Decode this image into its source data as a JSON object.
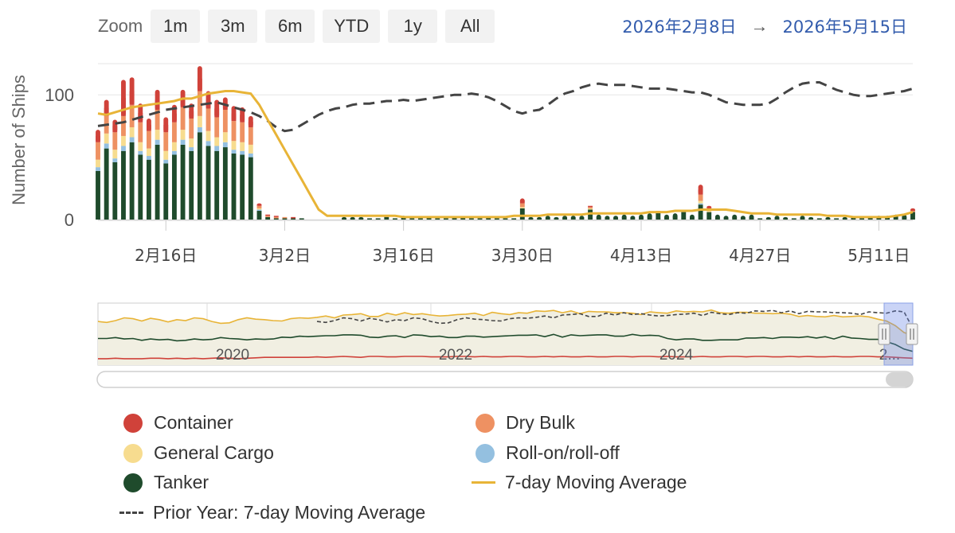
{
  "zoom": {
    "label": "Zoom",
    "buttons": [
      "1m",
      "3m",
      "6m",
      "YTD",
      "1y",
      "All"
    ]
  },
  "range": {
    "from": "2026年2月8日",
    "arrow": "→",
    "to": "2026年5月15日"
  },
  "colors": {
    "container": "#d0423a",
    "dry_bulk": "#ee9162",
    "general_cargo": "#f7dc8f",
    "roro": "#94c0e0",
    "tanker": "#1f4b2c",
    "moving_avg": "#e8b437",
    "prior_year": "#444444"
  },
  "chart_data": {
    "type": "bar",
    "ylabel": "Number of Ships",
    "yticks": [
      0,
      100
    ],
    "ylim": [
      0,
      125
    ],
    "xlim": [
      "2026-02-08",
      "2026-05-15"
    ],
    "xticks": [
      "2026-02-16",
      "2026-03-02",
      "2026-03-16",
      "2026-03-30",
      "2026-04-13",
      "2026-04-27",
      "2026-05-11"
    ],
    "xtick_labels": [
      "2月16日",
      "3月2日",
      "3月16日",
      "3月30日",
      "4月13日",
      "4月27日",
      "5月11日"
    ],
    "x": [
      "2026-02-08",
      "2026-02-09",
      "2026-02-10",
      "2026-02-11",
      "2026-02-12",
      "2026-02-13",
      "2026-02-14",
      "2026-02-15",
      "2026-02-16",
      "2026-02-17",
      "2026-02-18",
      "2026-02-19",
      "2026-02-20",
      "2026-02-21",
      "2026-02-22",
      "2026-02-23",
      "2026-02-24",
      "2026-02-25",
      "2026-02-26",
      "2026-02-27",
      "2026-02-28",
      "2026-03-01",
      "2026-03-02",
      "2026-03-03",
      "2026-03-04",
      "2026-03-05",
      "2026-03-06",
      "2026-03-07",
      "2026-03-08",
      "2026-03-09",
      "2026-03-10",
      "2026-03-11",
      "2026-03-12",
      "2026-03-13",
      "2026-03-14",
      "2026-03-15",
      "2026-03-16",
      "2026-03-17",
      "2026-03-18",
      "2026-03-19",
      "2026-03-20",
      "2026-03-21",
      "2026-03-22",
      "2026-03-23",
      "2026-03-24",
      "2026-03-25",
      "2026-03-26",
      "2026-03-27",
      "2026-03-28",
      "2026-03-29",
      "2026-03-30",
      "2026-03-31",
      "2026-04-01",
      "2026-04-02",
      "2026-04-03",
      "2026-04-04",
      "2026-04-05",
      "2026-04-06",
      "2026-04-07",
      "2026-04-08",
      "2026-04-09",
      "2026-04-10",
      "2026-04-11",
      "2026-04-12",
      "2026-04-13",
      "2026-04-14",
      "2026-04-15",
      "2026-04-16",
      "2026-04-17",
      "2026-04-18",
      "2026-04-19",
      "2026-04-20",
      "2026-04-21",
      "2026-04-22",
      "2026-04-23",
      "2026-04-24",
      "2026-04-25",
      "2026-04-26",
      "2026-04-27",
      "2026-04-28",
      "2026-04-29",
      "2026-04-30",
      "2026-05-01",
      "2026-05-02",
      "2026-05-03",
      "2026-05-04",
      "2026-05-05",
      "2026-05-06",
      "2026-05-07",
      "2026-05-08",
      "2026-05-09",
      "2026-05-10",
      "2026-05-11",
      "2026-05-12",
      "2026-05-13",
      "2026-05-14",
      "2026-05-15"
    ],
    "series": [
      {
        "name": "Tanker",
        "values": [
          39,
          57,
          46,
          55,
          62,
          52,
          48,
          60,
          45,
          52,
          60,
          55,
          70,
          59,
          55,
          58,
          53,
          52,
          50,
          7,
          2,
          1,
          1,
          1,
          1,
          0,
          0,
          0,
          0,
          2,
          2,
          2,
          1,
          1,
          2,
          1,
          3,
          1,
          1,
          2,
          1,
          1,
          2,
          2,
          1,
          1,
          2,
          1,
          1,
          1,
          9,
          2,
          2,
          3,
          2,
          3,
          3,
          3,
          8,
          4,
          3,
          3,
          4,
          3,
          4,
          5,
          6,
          4,
          5,
          6,
          4,
          12,
          6,
          4,
          3,
          4,
          3,
          4,
          1,
          2,
          3,
          2,
          1,
          3,
          2,
          1,
          2,
          1,
          2,
          2,
          1,
          2,
          3,
          3,
          4,
          4,
          6
        ]
      },
      {
        "name": "Roll-on/roll-off",
        "values": [
          3,
          4,
          3,
          4,
          4,
          3,
          3,
          4,
          3,
          3,
          4,
          3,
          4,
          4,
          4,
          4,
          3,
          3,
          3,
          1,
          0,
          0,
          0,
          0,
          0,
          0,
          0,
          0,
          0,
          0,
          0,
          0,
          0,
          0,
          0,
          0,
          0,
          0,
          0,
          0,
          0,
          0,
          0,
          0,
          0,
          0,
          0,
          0,
          0,
          0,
          0,
          0,
          0,
          0,
          0,
          0,
          0,
          0,
          0,
          0,
          0,
          0,
          0,
          0,
          0,
          0,
          0,
          0,
          0,
          0,
          0,
          1,
          0,
          0,
          0,
          0,
          0,
          0,
          0,
          0,
          0,
          0,
          0,
          0,
          0,
          0,
          0,
          0,
          0,
          0,
          0,
          0,
          0,
          0,
          0,
          0,
          0
        ]
      },
      {
        "name": "General Cargo",
        "values": [
          6,
          8,
          7,
          8,
          8,
          7,
          6,
          8,
          7,
          7,
          8,
          7,
          9,
          8,
          7,
          8,
          7,
          7,
          7,
          1,
          0,
          0,
          0,
          0,
          0,
          0,
          0,
          0,
          0,
          0,
          0,
          0,
          0,
          0,
          0,
          0,
          0,
          0,
          0,
          0,
          0,
          0,
          0,
          0,
          0,
          0,
          0,
          0,
          0,
          0,
          1,
          0,
          0,
          0,
          0,
          0,
          0,
          0,
          1,
          0,
          0,
          0,
          0,
          0,
          0,
          0,
          0,
          0,
          0,
          0,
          0,
          2,
          1,
          0,
          0,
          0,
          0,
          0,
          0,
          0,
          0,
          0,
          0,
          0,
          0,
          0,
          0,
          0,
          0,
          0,
          0,
          0,
          0,
          0,
          0,
          0,
          0
        ]
      },
      {
        "name": "Dry Bulk",
        "values": [
          14,
          14,
          14,
          16,
          18,
          16,
          14,
          16,
          15,
          16,
          18,
          16,
          20,
          18,
          16,
          18,
          16,
          16,
          14,
          2,
          1,
          1,
          1,
          0,
          0,
          0,
          0,
          0,
          0,
          0,
          0,
          0,
          0,
          0,
          1,
          0,
          0,
          0,
          0,
          0,
          0,
          0,
          0,
          0,
          0,
          0,
          0,
          0,
          0,
          0,
          3,
          0,
          0,
          0,
          0,
          0,
          0,
          0,
          1,
          0,
          0,
          0,
          0,
          0,
          0,
          0,
          1,
          0,
          0,
          1,
          0,
          5,
          2,
          0,
          0,
          0,
          0,
          0,
          0,
          0,
          0,
          0,
          0,
          0,
          0,
          0,
          0,
          0,
          0,
          0,
          0,
          0,
          0,
          0,
          0,
          0,
          1
        ]
      },
      {
        "name": "Container",
        "values": [
          10,
          13,
          10,
          29,
          22,
          15,
          10,
          16,
          12,
          14,
          14,
          12,
          20,
          14,
          14,
          10,
          12,
          12,
          9,
          2,
          1,
          1,
          0,
          1,
          0,
          0,
          0,
          0,
          0,
          0,
          0,
          0,
          0,
          0,
          0,
          0,
          0,
          0,
          0,
          0,
          0,
          0,
          0,
          0,
          0,
          0,
          0,
          0,
          0,
          0,
          4,
          0,
          0,
          0,
          0,
          0,
          0,
          0,
          1,
          0,
          0,
          0,
          0,
          0,
          0,
          0,
          0,
          0,
          0,
          0,
          0,
          8,
          2,
          0,
          0,
          0,
          0,
          0,
          0,
          0,
          0,
          0,
          0,
          0,
          0,
          0,
          0,
          0,
          0,
          0,
          0,
          0,
          0,
          0,
          0,
          0,
          2
        ]
      }
    ],
    "moving_average": {
      "name": "7-day Moving Average",
      "values": [
        85,
        84,
        86,
        88,
        90,
        91,
        92,
        93,
        94,
        95,
        97,
        97,
        99,
        101,
        102,
        103,
        103,
        102,
        101,
        92,
        80,
        68,
        56,
        44,
        32,
        20,
        8,
        3,
        3,
        3,
        3,
        3,
        3,
        3,
        3,
        3,
        2,
        2,
        2,
        2,
        2,
        2,
        2,
        2,
        2,
        2,
        2,
        2,
        2,
        3,
        3,
        3,
        3,
        4,
        4,
        4,
        4,
        4,
        5,
        5,
        5,
        5,
        5,
        5,
        5,
        6,
        6,
        6,
        7,
        7,
        7,
        8,
        8,
        8,
        8,
        7,
        6,
        5,
        5,
        5,
        4,
        4,
        4,
        4,
        4,
        4,
        3,
        3,
        3,
        2,
        2,
        2,
        2,
        2,
        3,
        4,
        6
      ]
    },
    "prior_year": {
      "name": "Prior Year: 7-day Moving Average",
      "values": [
        75,
        76,
        77,
        78,
        80,
        82,
        84,
        86,
        88,
        89,
        90,
        91,
        92,
        93,
        94,
        92,
        90,
        88,
        86,
        83,
        79,
        74,
        71,
        72,
        76,
        80,
        84,
        87,
        89,
        90,
        92,
        93,
        93,
        94,
        95,
        95,
        96,
        95,
        96,
        97,
        98,
        99,
        100,
        100,
        101,
        100,
        98,
        95,
        91,
        87,
        85,
        87,
        88,
        92,
        97,
        101,
        103,
        106,
        108,
        109,
        108,
        108,
        108,
        107,
        106,
        105,
        105,
        105,
        104,
        103,
        102,
        102,
        100,
        97,
        94,
        93,
        92,
        92,
        92,
        93,
        97,
        102,
        106,
        109,
        110,
        110,
        107,
        104,
        102,
        100,
        99,
        99,
        100,
        101,
        102,
        103,
        105
      ]
    },
    "navigator": {
      "x_labels": [
        "2020",
        "2022",
        "2024",
        "2..."
      ],
      "series": [
        {
          "name": "7-day Moving Average",
          "values": [
            95,
            93,
            97,
            103,
            101,
            96,
            102,
            99,
            94,
            99,
            97,
            103,
            101,
            95,
            91,
            92,
            99,
            103,
            100,
            99,
            97,
            96,
            101,
            103,
            102,
            104,
            107,
            103,
            109,
            110,
            112,
            106,
            106,
            113,
            109,
            114,
            110,
            112,
            109,
            107,
            108,
            110,
            111,
            113,
            108,
            115,
            112,
            110,
            114,
            113,
            118,
            117,
            119,
            114,
            118,
            112,
            117,
            116,
            116,
            114,
            114,
            113,
            110,
            116,
            114,
            113,
            118,
            116,
            117,
            116,
            120,
            114,
            113,
            115,
            115,
            113,
            113,
            112,
            113,
            111,
            106,
            108,
            106,
            105,
            108,
            105,
            106,
            107,
            105,
            100,
            96,
            86,
            71,
            65
          ]
        },
        {
          "name": "Prior Year: 7-day Moving Average",
          "values": [
            null,
            null,
            null,
            null,
            null,
            null,
            null,
            null,
            null,
            null,
            null,
            null,
            null,
            null,
            null,
            null,
            null,
            null,
            null,
            null,
            null,
            null,
            null,
            null,
            null,
            95,
            93,
            97,
            103,
            101,
            96,
            102,
            99,
            94,
            99,
            97,
            103,
            101,
            95,
            91,
            92,
            99,
            103,
            100,
            99,
            97,
            96,
            101,
            103,
            102,
            104,
            107,
            103,
            109,
            110,
            112,
            106,
            106,
            113,
            109,
            114,
            110,
            112,
            109,
            107,
            108,
            110,
            111,
            113,
            108,
            115,
            112,
            110,
            114,
            113,
            118,
            117,
            119,
            114,
            118,
            112,
            117,
            116,
            116,
            114,
            114,
            113,
            110,
            116,
            114,
            113,
            118,
            116,
            80
          ]
        },
        {
          "name": "Tanker",
          "values": [
            58,
            58,
            60,
            57,
            58,
            54,
            57,
            55,
            56,
            53,
            54,
            57,
            55,
            56,
            60,
            58,
            57,
            55,
            57,
            56,
            57,
            61,
            60,
            63,
            62,
            63,
            64,
            64,
            66,
            66,
            65,
            61,
            60,
            63,
            64,
            60,
            66,
            65,
            62,
            63,
            60,
            60,
            63,
            63,
            61,
            62,
            63,
            64,
            65,
            65,
            66,
            62,
            67,
            61,
            66,
            64,
            65,
            66,
            66,
            63,
            63,
            67,
            64,
            65,
            64,
            58,
            55,
            57,
            57,
            54,
            54,
            55,
            55,
            55,
            59,
            59,
            60,
            58,
            61,
            61,
            60,
            62,
            59,
            62,
            57,
            63,
            59,
            58,
            56,
            56,
            51,
            45,
            35,
            30
          ]
        },
        {
          "name": "Container",
          "values": [
            14,
            14,
            15,
            14,
            14,
            14,
            15,
            15,
            14,
            15,
            14,
            15,
            14,
            15,
            16,
            15,
            14,
            15,
            16,
            17,
            17,
            17,
            17,
            17,
            17,
            18,
            17,
            18,
            19,
            18,
            17,
            19,
            19,
            18,
            18,
            19,
            19,
            19,
            18,
            18,
            18,
            19,
            19,
            18,
            19,
            18,
            18,
            19,
            19,
            18,
            18,
            19,
            18,
            19,
            18,
            18,
            19,
            18,
            18,
            19,
            19,
            18,
            19,
            19,
            18,
            19,
            18,
            18,
            18,
            19,
            18,
            18,
            19,
            19,
            18,
            19,
            19,
            18,
            18,
            19,
            18,
            19,
            18,
            18,
            19,
            18,
            18,
            19,
            19,
            18,
            18,
            17,
            16,
            15
          ]
        }
      ]
    },
    "legend": [
      {
        "name": "Container",
        "marker": "dot",
        "color": "#d0423a"
      },
      {
        "name": "Dry Bulk",
        "marker": "dot",
        "color": "#ee9162"
      },
      {
        "name": "General Cargo",
        "marker": "dot",
        "color": "#f7dc8f"
      },
      {
        "name": "Roll-on/roll-off",
        "marker": "dot",
        "color": "#94c0e0"
      },
      {
        "name": "Tanker",
        "marker": "dot",
        "color": "#1f4b2c"
      },
      {
        "name": "7-day Moving Average",
        "marker": "line",
        "color": "#e8b437"
      },
      {
        "name": "Prior Year: 7-day Moving Average",
        "marker": "dash",
        "color": "#444444"
      }
    ],
    "legend_position": "bottom"
  }
}
